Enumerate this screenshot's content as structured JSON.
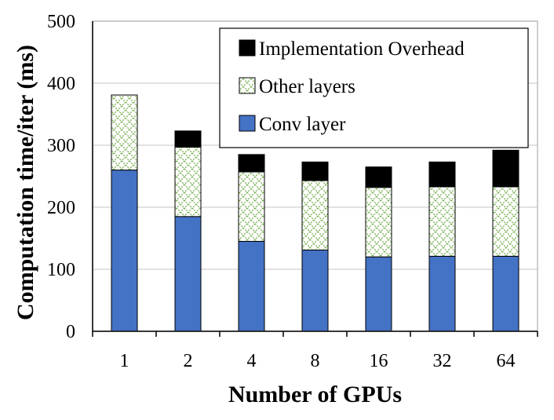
{
  "chart_data": {
    "type": "bar",
    "stacked": true,
    "title": "",
    "xlabel": "Number of GPUs",
    "ylabel": "Computation time/iter (ms)",
    "categories": [
      "1",
      "2",
      "4",
      "8",
      "16",
      "32",
      "64"
    ],
    "ylim": [
      0,
      500
    ],
    "yticks": [
      0,
      100,
      200,
      300,
      400,
      500
    ],
    "grid": true,
    "legend_position": "top-right",
    "series": [
      {
        "name": "Conv layer",
        "color": "#4472C4",
        "pattern": "solid",
        "values": [
          260,
          185,
          145,
          131,
          120,
          121,
          121
        ]
      },
      {
        "name": "Other layers",
        "color": "#70AD47",
        "pattern": "lattice",
        "values": [
          121,
          112,
          112,
          112,
          112,
          112,
          112
        ]
      },
      {
        "name": "Implementation Overhead",
        "color": "#000000",
        "pattern": "solid",
        "values": [
          0,
          26,
          28,
          30,
          33,
          40,
          59
        ]
      }
    ]
  }
}
